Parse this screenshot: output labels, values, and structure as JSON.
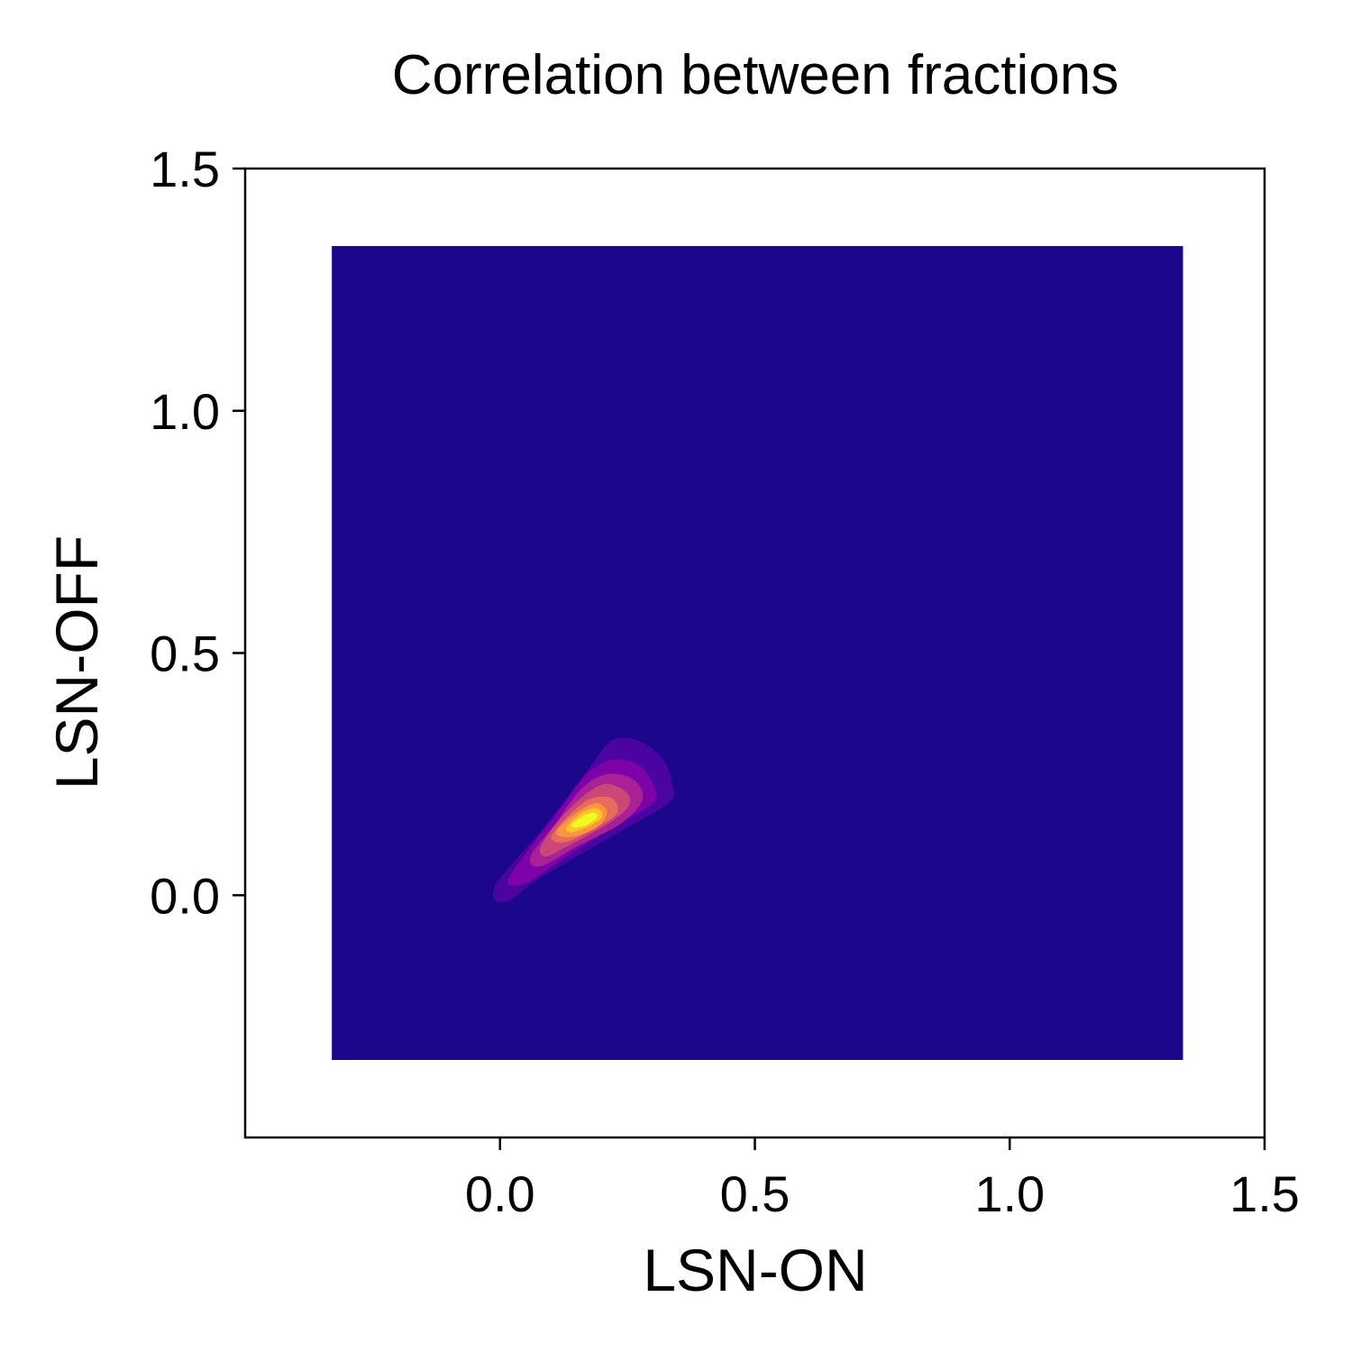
{
  "chart_data": {
    "type": "heatmap",
    "subtype": "kde-filled-contour",
    "title": "Correlation between fractions",
    "xlabel": "LSN-ON",
    "ylabel": "LSN-OFF",
    "xlim": [
      -0.5,
      1.5
    ],
    "ylim": [
      -0.5,
      1.5
    ],
    "xticks": [
      "0.0",
      "0.5",
      "1.0",
      "1.5"
    ],
    "yticks": [
      "0.0",
      "0.5",
      "1.0",
      "1.5"
    ],
    "grid": false,
    "colormap": "plasma",
    "density_region": {
      "x": [
        -0.33,
        1.34
      ],
      "y": [
        -0.34,
        1.34
      ]
    },
    "density_peak": {
      "x": 0.16,
      "y": 0.16
    },
    "contours": [
      {
        "level": 1,
        "color": "#4b03a1",
        "points": [
          [
            -0.01,
            0.02
          ],
          [
            0.02,
            0.06
          ],
          [
            0.07,
            0.12
          ],
          [
            0.13,
            0.2
          ],
          [
            0.18,
            0.27
          ],
          [
            0.22,
            0.32
          ],
          [
            0.27,
            0.32
          ],
          [
            0.32,
            0.28
          ],
          [
            0.34,
            0.22
          ],
          [
            0.33,
            0.19
          ],
          [
            0.25,
            0.14
          ],
          [
            0.15,
            0.08
          ],
          [
            0.07,
            0.03
          ],
          [
            0.02,
            -0.01
          ],
          [
            -0.01,
            -0.01
          ]
        ]
      },
      {
        "level": 2,
        "color": "#7d03a8",
        "points": [
          [
            0.02,
            0.04
          ],
          [
            0.06,
            0.1
          ],
          [
            0.12,
            0.18
          ],
          [
            0.17,
            0.25
          ],
          [
            0.22,
            0.28
          ],
          [
            0.27,
            0.27
          ],
          [
            0.3,
            0.23
          ],
          [
            0.3,
            0.19
          ],
          [
            0.22,
            0.14
          ],
          [
            0.13,
            0.08
          ],
          [
            0.06,
            0.03
          ],
          [
            0.02,
            0.02
          ]
        ]
      },
      {
        "level": 3,
        "color": "#a82296",
        "points": [
          [
            0.06,
            0.08
          ],
          [
            0.11,
            0.15
          ],
          [
            0.16,
            0.22
          ],
          [
            0.21,
            0.25
          ],
          [
            0.26,
            0.24
          ],
          [
            0.28,
            0.2
          ],
          [
            0.24,
            0.15
          ],
          [
            0.15,
            0.1
          ],
          [
            0.08,
            0.06
          ]
        ]
      },
      {
        "level": 4,
        "color": "#cb4778",
        "points": [
          [
            0.08,
            0.1
          ],
          [
            0.12,
            0.16
          ],
          [
            0.17,
            0.21
          ],
          [
            0.21,
            0.23
          ],
          [
            0.25,
            0.21
          ],
          [
            0.25,
            0.18
          ],
          [
            0.2,
            0.14
          ],
          [
            0.13,
            0.1
          ],
          [
            0.09,
            0.08
          ]
        ]
      },
      {
        "level": 5,
        "color": "#e66c5c",
        "points": [
          [
            0.1,
            0.12
          ],
          [
            0.14,
            0.17
          ],
          [
            0.18,
            0.2
          ],
          [
            0.22,
            0.2
          ],
          [
            0.23,
            0.17
          ],
          [
            0.19,
            0.14
          ],
          [
            0.13,
            0.11
          ]
        ]
      },
      {
        "level": 6,
        "color": "#f89540",
        "points": [
          [
            0.11,
            0.13
          ],
          [
            0.15,
            0.17
          ],
          [
            0.19,
            0.19
          ],
          [
            0.21,
            0.17
          ],
          [
            0.19,
            0.14
          ],
          [
            0.14,
            0.12
          ]
        ]
      },
      {
        "level": 7,
        "color": "#fdc527",
        "points": [
          [
            0.13,
            0.14
          ],
          [
            0.16,
            0.17
          ],
          [
            0.19,
            0.18
          ],
          [
            0.2,
            0.16
          ],
          [
            0.17,
            0.14
          ],
          [
            0.14,
            0.13
          ]
        ]
      },
      {
        "level": 8,
        "color": "#f0f921",
        "points": [
          [
            0.14,
            0.145
          ],
          [
            0.165,
            0.165
          ],
          [
            0.185,
            0.17
          ],
          [
            0.19,
            0.16
          ],
          [
            0.17,
            0.145
          ],
          [
            0.15,
            0.14
          ]
        ]
      }
    ],
    "colors": {
      "background_density": "#1b068c",
      "axes": "#000000"
    }
  }
}
